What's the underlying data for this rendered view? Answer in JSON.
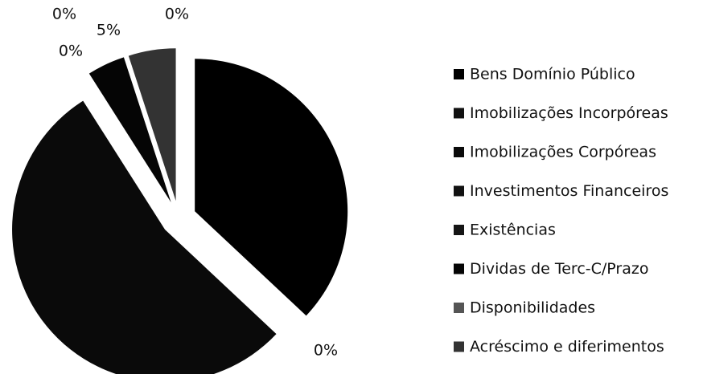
{
  "chart_data": {
    "type": "pie",
    "categories": [
      "Bens   Domínio Público",
      "Imobilizações Incorpóreas",
      "Imobilizações Corpóreas",
      "Investimentos Financeiros",
      "Existências",
      "Dividas de Terc-C/Prazo",
      "Disponibilidades",
      "Acréscimo e diferimentos"
    ],
    "values": [
      37,
      0,
      54,
      0,
      0,
      4,
      0,
      5
    ],
    "colors": [
      "#000000",
      "#111111",
      "#0a0a0a",
      "#111111",
      "#151515",
      "#050505",
      "#555555",
      "#333333"
    ],
    "annotations": [
      "0%",
      "5%",
      "0%",
      "0%",
      "0%"
    ],
    "legend": "right"
  }
}
